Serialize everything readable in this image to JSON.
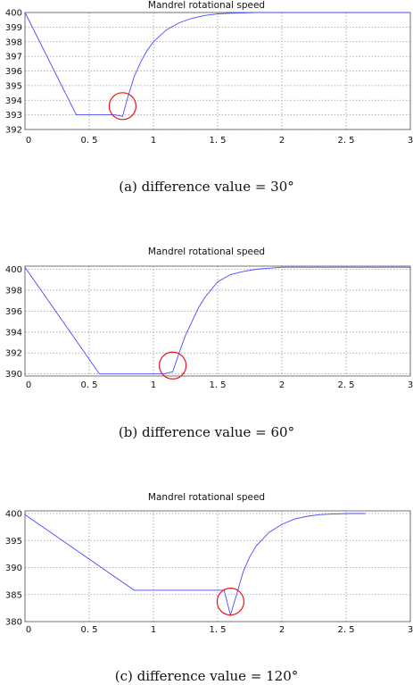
{
  "chart_data": [
    {
      "type": "line",
      "title": "Mandrel rotational speed",
      "caption": "(a)  difference value = 30°",
      "xlim": [
        0,
        3
      ],
      "ylim": [
        392,
        400
      ],
      "x_ticks": [
        "0",
        "0. 5",
        "1",
        "1. 5",
        "2",
        "2. 5",
        "3"
      ],
      "y_ticks": [
        "400",
        "399",
        "398",
        "397",
        "396",
        "395",
        "394",
        "393",
        "392"
      ],
      "y_tick_values": [
        400,
        399,
        398,
        397,
        396,
        395,
        394,
        393,
        392
      ],
      "grid": true,
      "series": [
        {
          "color": "#4a4aff",
          "x": [
            0,
            0.4,
            0.7,
            0.76,
            0.8,
            0.85,
            0.9,
            0.95,
            1.0,
            1.1,
            1.2,
            1.3,
            1.4,
            1.5,
            1.6,
            1.8,
            2.0,
            2.5,
            3.0
          ],
          "y": [
            400,
            393,
            393,
            392.9,
            394.2,
            395.6,
            396.6,
            397.4,
            398.0,
            398.8,
            399.3,
            399.6,
            399.8,
            399.9,
            399.95,
            400,
            400,
            400,
            400
          ]
        }
      ],
      "annotation": {
        "type": "circle",
        "x": 0.76,
        "y": 393.6,
        "color": "#e8141c"
      }
    },
    {
      "type": "line",
      "title": "Mandrel rotational speed",
      "caption": "(b)  difference value = 60°",
      "xlim": [
        0,
        3
      ],
      "ylim": [
        389.8,
        400.3
      ],
      "x_ticks": [
        "0",
        "0. 5",
        "1",
        "1. 5",
        "2",
        "2. 5",
        "3"
      ],
      "y_ticks": [
        "400",
        "398",
        "396",
        "394",
        "392",
        "390"
      ],
      "y_tick_values": [
        400,
        398,
        396,
        394,
        392,
        390
      ],
      "grid": true,
      "series": [
        {
          "color": "#4a4aff",
          "x": [
            0,
            0.58,
            1.08,
            1.15,
            1.2,
            1.25,
            1.3,
            1.35,
            1.4,
            1.5,
            1.6,
            1.7,
            1.8,
            1.9,
            2.0,
            2.2,
            3.0
          ],
          "y": [
            400.2,
            390,
            390,
            390.2,
            392.0,
            393.7,
            395.0,
            396.3,
            397.3,
            398.8,
            399.5,
            399.8,
            400.0,
            400.1,
            400.2,
            400.2,
            400.2
          ]
        }
      ],
      "annotation": {
        "type": "circle",
        "x": 1.15,
        "y": 390.8,
        "color": "#e8141c"
      }
    },
    {
      "type": "line",
      "title": "Mandrel rotational speed",
      "caption": "(c)  difference value = 120°",
      "xlim": [
        0,
        3
      ],
      "ylim": [
        380,
        400.5
      ],
      "x_ticks": [
        "0",
        "0. 5",
        "1",
        "1. 5",
        "2",
        "2. 5",
        "3"
      ],
      "y_ticks": [
        "400",
        "395",
        "390",
        "385",
        "380"
      ],
      "y_tick_values": [
        400,
        395,
        390,
        385,
        380
      ],
      "grid": true,
      "series": [
        {
          "color": "#4a4aff",
          "x": [
            0,
            0.85,
            1.55,
            1.6,
            1.65,
            1.7,
            1.75,
            1.8,
            1.9,
            2.0,
            2.1,
            2.2,
            2.3,
            2.4,
            2.5,
            2.65
          ],
          "y": [
            399.8,
            385.8,
            385.8,
            381.2,
            385.2,
            389.3,
            392.0,
            394.0,
            396.5,
            398.0,
            399.0,
            399.5,
            399.8,
            399.9,
            400,
            400
          ]
        }
      ],
      "annotation": {
        "type": "circle",
        "x": 1.6,
        "y": 383.7,
        "color": "#e8141c"
      }
    }
  ]
}
